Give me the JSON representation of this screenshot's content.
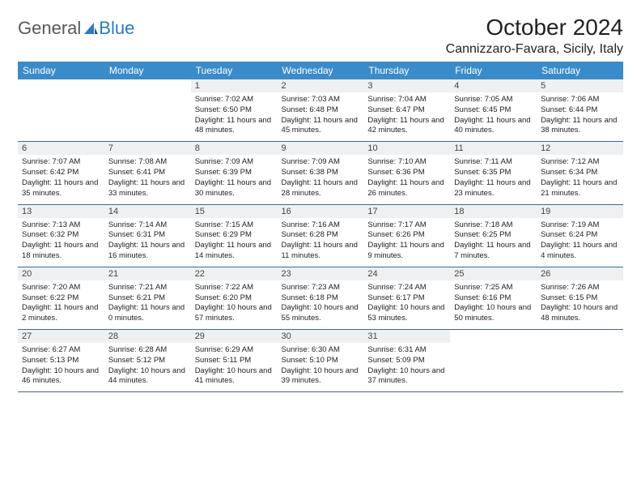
{
  "brand": {
    "text_general": "General",
    "text_blue": "Blue",
    "sail_color": "#2a7bbf",
    "gray_color": "#585858"
  },
  "title": "October 2024",
  "location": "Cannizzaro-Favara, Sicily, Italy",
  "colors": {
    "header_bg": "#3a8bc9",
    "header_text": "#ffffff",
    "daynum_bg": "#eef0f2",
    "border": "#3a6a9a",
    "text": "#222222"
  },
  "weekdays": [
    "Sunday",
    "Monday",
    "Tuesday",
    "Wednesday",
    "Thursday",
    "Friday",
    "Saturday"
  ],
  "weeks": [
    [
      null,
      null,
      {
        "n": "1",
        "sr": "7:02 AM",
        "ss": "6:50 PM",
        "dl": "11 hours and 48 minutes."
      },
      {
        "n": "2",
        "sr": "7:03 AM",
        "ss": "6:48 PM",
        "dl": "11 hours and 45 minutes."
      },
      {
        "n": "3",
        "sr": "7:04 AM",
        "ss": "6:47 PM",
        "dl": "11 hours and 42 minutes."
      },
      {
        "n": "4",
        "sr": "7:05 AM",
        "ss": "6:45 PM",
        "dl": "11 hours and 40 minutes."
      },
      {
        "n": "5",
        "sr": "7:06 AM",
        "ss": "6:44 PM",
        "dl": "11 hours and 38 minutes."
      }
    ],
    [
      {
        "n": "6",
        "sr": "7:07 AM",
        "ss": "6:42 PM",
        "dl": "11 hours and 35 minutes."
      },
      {
        "n": "7",
        "sr": "7:08 AM",
        "ss": "6:41 PM",
        "dl": "11 hours and 33 minutes."
      },
      {
        "n": "8",
        "sr": "7:09 AM",
        "ss": "6:39 PM",
        "dl": "11 hours and 30 minutes."
      },
      {
        "n": "9",
        "sr": "7:09 AM",
        "ss": "6:38 PM",
        "dl": "11 hours and 28 minutes."
      },
      {
        "n": "10",
        "sr": "7:10 AM",
        "ss": "6:36 PM",
        "dl": "11 hours and 26 minutes."
      },
      {
        "n": "11",
        "sr": "7:11 AM",
        "ss": "6:35 PM",
        "dl": "11 hours and 23 minutes."
      },
      {
        "n": "12",
        "sr": "7:12 AM",
        "ss": "6:34 PM",
        "dl": "11 hours and 21 minutes."
      }
    ],
    [
      {
        "n": "13",
        "sr": "7:13 AM",
        "ss": "6:32 PM",
        "dl": "11 hours and 18 minutes."
      },
      {
        "n": "14",
        "sr": "7:14 AM",
        "ss": "6:31 PM",
        "dl": "11 hours and 16 minutes."
      },
      {
        "n": "15",
        "sr": "7:15 AM",
        "ss": "6:29 PM",
        "dl": "11 hours and 14 minutes."
      },
      {
        "n": "16",
        "sr": "7:16 AM",
        "ss": "6:28 PM",
        "dl": "11 hours and 11 minutes."
      },
      {
        "n": "17",
        "sr": "7:17 AM",
        "ss": "6:26 PM",
        "dl": "11 hours and 9 minutes."
      },
      {
        "n": "18",
        "sr": "7:18 AM",
        "ss": "6:25 PM",
        "dl": "11 hours and 7 minutes."
      },
      {
        "n": "19",
        "sr": "7:19 AM",
        "ss": "6:24 PM",
        "dl": "11 hours and 4 minutes."
      }
    ],
    [
      {
        "n": "20",
        "sr": "7:20 AM",
        "ss": "6:22 PM",
        "dl": "11 hours and 2 minutes."
      },
      {
        "n": "21",
        "sr": "7:21 AM",
        "ss": "6:21 PM",
        "dl": "11 hours and 0 minutes."
      },
      {
        "n": "22",
        "sr": "7:22 AM",
        "ss": "6:20 PM",
        "dl": "10 hours and 57 minutes."
      },
      {
        "n": "23",
        "sr": "7:23 AM",
        "ss": "6:18 PM",
        "dl": "10 hours and 55 minutes."
      },
      {
        "n": "24",
        "sr": "7:24 AM",
        "ss": "6:17 PM",
        "dl": "10 hours and 53 minutes."
      },
      {
        "n": "25",
        "sr": "7:25 AM",
        "ss": "6:16 PM",
        "dl": "10 hours and 50 minutes."
      },
      {
        "n": "26",
        "sr": "7:26 AM",
        "ss": "6:15 PM",
        "dl": "10 hours and 48 minutes."
      }
    ],
    [
      {
        "n": "27",
        "sr": "6:27 AM",
        "ss": "5:13 PM",
        "dl": "10 hours and 46 minutes."
      },
      {
        "n": "28",
        "sr": "6:28 AM",
        "ss": "5:12 PM",
        "dl": "10 hours and 44 minutes."
      },
      {
        "n": "29",
        "sr": "6:29 AM",
        "ss": "5:11 PM",
        "dl": "10 hours and 41 minutes."
      },
      {
        "n": "30",
        "sr": "6:30 AM",
        "ss": "5:10 PM",
        "dl": "10 hours and 39 minutes."
      },
      {
        "n": "31",
        "sr": "6:31 AM",
        "ss": "5:09 PM",
        "dl": "10 hours and 37 minutes."
      },
      null,
      null
    ]
  ],
  "labels": {
    "sunrise": "Sunrise:",
    "sunset": "Sunset:",
    "daylight": "Daylight:"
  }
}
